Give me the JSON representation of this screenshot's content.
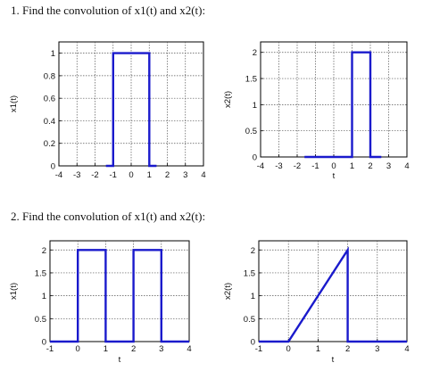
{
  "questions": [
    "1.   Find the convolution of x1(t) and x2(t):",
    "2. Find the convolution of x1(t) and x2(t):"
  ],
  "colors": {
    "signal": "#1a1acc",
    "grid": "#555555",
    "axes": "#000000"
  },
  "chart_data": [
    {
      "type": "line",
      "title": "",
      "xlabel": "",
      "ylabel": "x1(t)",
      "xlim": [
        -4,
        4
      ],
      "ylim": [
        0,
        1.1
      ],
      "grid": true,
      "xticks": [
        -4,
        -3,
        -2,
        -1,
        0,
        1,
        2,
        3,
        4
      ],
      "yticks": [
        0,
        0.2,
        0.4,
        0.6,
        0.8,
        1
      ],
      "ytick_labels": [
        "0",
        "0.2",
        "0.4",
        "0.6",
        "0.8",
        "1"
      ],
      "series": [
        {
          "x": [
            -1.4,
            -1,
            -1,
            1,
            1,
            1.4
          ],
          "y": [
            0,
            0,
            1,
            1,
            0,
            0
          ]
        }
      ]
    },
    {
      "type": "line",
      "title": "",
      "xlabel": "t",
      "ylabel": "x2(t)",
      "xlim": [
        -4,
        4
      ],
      "ylim": [
        0,
        2.2
      ],
      "grid": true,
      "xticks": [
        -4,
        -3,
        -2,
        -1,
        0,
        1,
        2,
        3,
        4
      ],
      "yticks": [
        0,
        0.5,
        1,
        1.5,
        2
      ],
      "ytick_labels": [
        "0",
        "0.5",
        "1",
        "1.5",
        "2"
      ],
      "series": [
        {
          "x": [
            -1.6,
            1,
            1,
            2,
            2,
            2.6
          ],
          "y": [
            0,
            0,
            2,
            2,
            0,
            0
          ]
        }
      ]
    },
    {
      "type": "line",
      "title": "",
      "xlabel": "t",
      "ylabel": "x1(t)",
      "xlim": [
        -1,
        4
      ],
      "ylim": [
        0,
        2.2
      ],
      "grid": true,
      "xticks": [
        -1,
        0,
        1,
        2,
        3,
        4
      ],
      "yticks": [
        0,
        0.5,
        1,
        1.5,
        2
      ],
      "ytick_labels": [
        "0",
        "0.5",
        "1",
        "1.5",
        "2"
      ],
      "series": [
        {
          "x": [
            -1,
            0,
            0,
            1,
            1,
            2,
            2,
            3,
            3,
            4
          ],
          "y": [
            0,
            0,
            2,
            2,
            0,
            0,
            2,
            2,
            0,
            0
          ]
        }
      ]
    },
    {
      "type": "line",
      "title": "",
      "xlabel": "t",
      "ylabel": "x2(t)",
      "xlim": [
        -1,
        4
      ],
      "ylim": [
        0,
        2.2
      ],
      "grid": true,
      "xticks": [
        -1,
        0,
        1,
        2,
        3,
        4
      ],
      "yticks": [
        0,
        0.5,
        1,
        1.5,
        2
      ],
      "ytick_labels": [
        "0",
        "0.5",
        "1",
        "1.5",
        "2"
      ],
      "series": [
        {
          "x": [
            -1,
            0,
            2,
            2,
            4
          ],
          "y": [
            0,
            0,
            2,
            0,
            0
          ]
        }
      ]
    }
  ]
}
